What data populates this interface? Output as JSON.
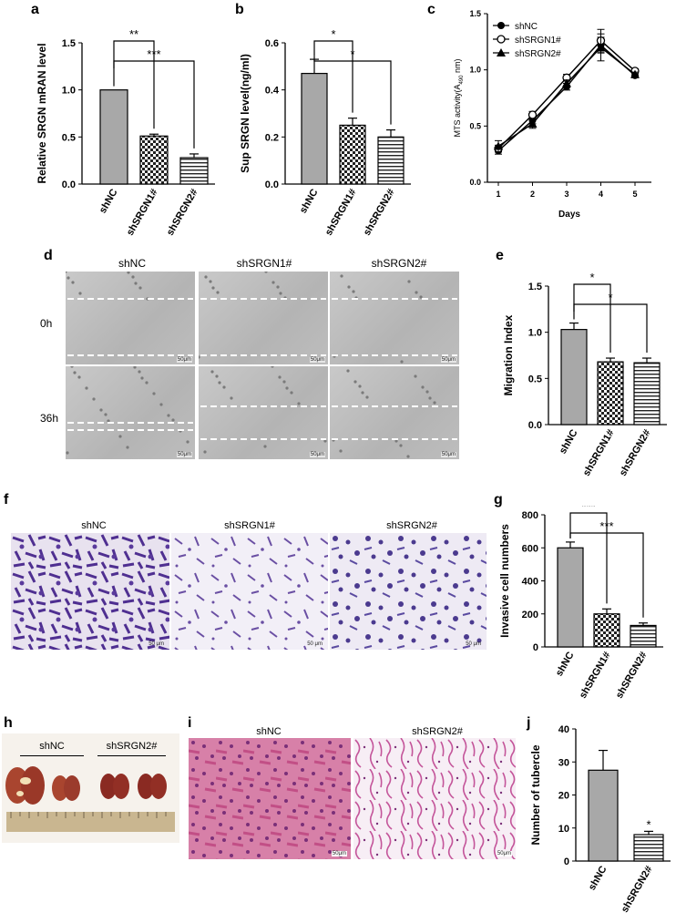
{
  "panels": {
    "a": "a",
    "b": "b",
    "c": "c",
    "d": "d",
    "e": "e",
    "f": "f",
    "g": "g",
    "h": "h",
    "i": "i",
    "j": "j"
  },
  "colors": {
    "gray_bar": "#a8a8a8",
    "stain_purple": "#6a4fa3",
    "he_pink": "#d86a9a",
    "lung_red": "#9b2f25"
  },
  "chart_data": [
    {
      "id": "a",
      "type": "bar",
      "categories": [
        "shNC",
        "shSRGN1#",
        "shSRGN2#"
      ],
      "values": [
        1.0,
        0.51,
        0.28
      ],
      "errors": [
        0,
        0.02,
        0.04
      ],
      "fills": [
        "gray",
        "checker",
        "hstripe"
      ],
      "ylabel": "Relative SRGN mRAN level",
      "ylim": [
        0,
        1.5
      ],
      "yticks": [
        "0.0",
        "0.5",
        "1.0",
        "1.5"
      ],
      "significance": [
        {
          "from": 0,
          "to": 1,
          "label": "**"
        },
        {
          "from": 0,
          "to": 2,
          "label": "***"
        }
      ]
    },
    {
      "id": "b",
      "type": "bar",
      "categories": [
        "shNC",
        "shSRGN1#",
        "shSRGN2#"
      ],
      "values": [
        0.47,
        0.25,
        0.2
      ],
      "errors": [
        0.06,
        0.03,
        0.03
      ],
      "fills": [
        "gray",
        "checker",
        "hstripe"
      ],
      "ylabel": "Sup SRGN level(ng/ml)",
      "ylim": [
        0,
        0.6
      ],
      "yticks": [
        "0.0",
        "0.2",
        "0.4",
        "0.6"
      ],
      "significance": [
        {
          "from": 0,
          "to": 1,
          "label": "*"
        },
        {
          "from": 0,
          "to": 2,
          "label": "*"
        }
      ]
    },
    {
      "id": "c",
      "type": "line",
      "x": [
        1,
        2,
        3,
        4,
        5
      ],
      "xticks": [
        "1",
        "2",
        "3",
        "4",
        "5"
      ],
      "xlabel": "Days",
      "ylabel_main": "MTS activity(A",
      "ylabel_sub": "490",
      "ylabel_end": " nm)",
      "ylim": [
        0,
        1.5
      ],
      "yticks": [
        "0.0",
        "0.5",
        "1.0",
        "1.5"
      ],
      "legend_position": "top-right",
      "series": [
        {
          "name": "shNC",
          "marker": "filled-circle",
          "values": [
            0.28,
            0.55,
            0.85,
            1.22,
            0.95
          ],
          "errors": [
            0.03,
            0.03,
            0.03,
            0.07,
            0.02
          ]
        },
        {
          "name": "shSRGN1#",
          "marker": "open-circle",
          "values": [
            0.3,
            0.6,
            0.93,
            1.26,
            0.99
          ],
          "errors": [
            0.03,
            0.03,
            0.03,
            0.1,
            0.02
          ]
        },
        {
          "name": "shSRGN2#",
          "marker": "filled-triangle",
          "values": [
            0.32,
            0.52,
            0.88,
            1.2,
            0.96
          ],
          "errors": [
            0.05,
            0.04,
            0.03,
            0.12,
            0.02
          ]
        }
      ]
    },
    {
      "id": "e",
      "type": "bar",
      "categories": [
        "shNC",
        "shSRGN1#",
        "shSRGN2#"
      ],
      "values": [
        1.03,
        0.68,
        0.67
      ],
      "errors": [
        0.07,
        0.04,
        0.05
      ],
      "fills": [
        "gray",
        "checker",
        "hstripe"
      ],
      "ylabel": "Migration Index",
      "ylim": [
        0,
        1.5
      ],
      "yticks": [
        "0.0",
        "0.5",
        "1.0",
        "1.5"
      ],
      "significance": [
        {
          "from": 0,
          "to": 1,
          "label": "*"
        },
        {
          "from": 0,
          "to": 2,
          "label": "*"
        }
      ]
    },
    {
      "id": "g",
      "type": "bar",
      "categories": [
        "shNC",
        "shSRGN1#",
        "shSRGN2#"
      ],
      "values": [
        600,
        200,
        130
      ],
      "errors": [
        35,
        30,
        15
      ],
      "fills": [
        "gray",
        "checker",
        "hstripe"
      ],
      "ylabel": "Invasive cell numbers",
      "ylim": [
        0,
        800
      ],
      "yticks": [
        "0",
        "200",
        "400",
        "600",
        "800"
      ],
      "significance": [
        {
          "from": 0,
          "to": 1,
          "label": "***"
        },
        {
          "from": 0,
          "to": 2,
          "label": "***"
        }
      ]
    },
    {
      "id": "j",
      "type": "bar",
      "categories": [
        "shNC",
        "shSRGN2#"
      ],
      "values": [
        27.5,
        8.0
      ],
      "errors": [
        6.0,
        1.0
      ],
      "fills": [
        "gray",
        "hstripe"
      ],
      "ylabel": "Number of tubercle",
      "ylim": [
        0,
        40
      ],
      "yticks": [
        "0",
        "10",
        "20",
        "30",
        "40"
      ],
      "significance": [
        {
          "from": 1,
          "to": 1,
          "label": "*"
        }
      ]
    }
  ],
  "wound": {
    "columns": [
      "shNC",
      "shSRGN1#",
      "shSRGN2#"
    ],
    "rows": [
      "0h",
      "36h"
    ],
    "scale": "50μm"
  },
  "invasion": {
    "columns": [
      "shNC",
      "shSRGN1#",
      "shSRGN2#"
    ],
    "scale": "50 μm"
  },
  "lungs": {
    "groups": [
      "shNC",
      "shSRGN2#"
    ]
  },
  "histology": {
    "columns": [
      "shNC",
      "shSRGN2#"
    ],
    "scale": "50μm"
  }
}
